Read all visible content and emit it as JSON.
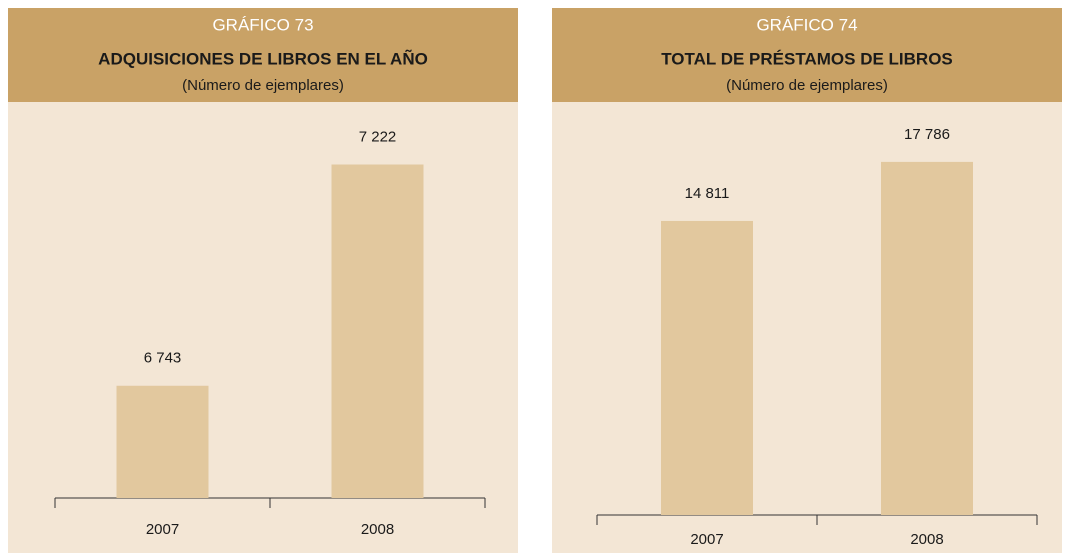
{
  "chart_data": [
    {
      "type": "bar",
      "label": "GRÁFICO 73",
      "title": "ADQUISICIONES DE LIBROS EN EL AÑO",
      "subtitle": "(Número de ejemplares)",
      "categories": [
        "2007",
        "2008"
      ],
      "values": [
        6743,
        7222
      ],
      "value_labels": [
        "6 743",
        "7 222"
      ],
      "color": "#e2c89e",
      "ylim": [
        6500,
        7340
      ]
    },
    {
      "type": "bar",
      "label": "GRÁFICO 74",
      "title": "TOTAL DE PRÉSTAMOS DE LIBROS",
      "subtitle": "(Número de ejemplares)",
      "categories": [
        "2007",
        "2008"
      ],
      "values": [
        14811,
        17786
      ],
      "value_labels": [
        "14 811",
        "17 786"
      ],
      "color": "#e2c89e",
      "ylim": [
        0,
        20400
      ]
    }
  ]
}
